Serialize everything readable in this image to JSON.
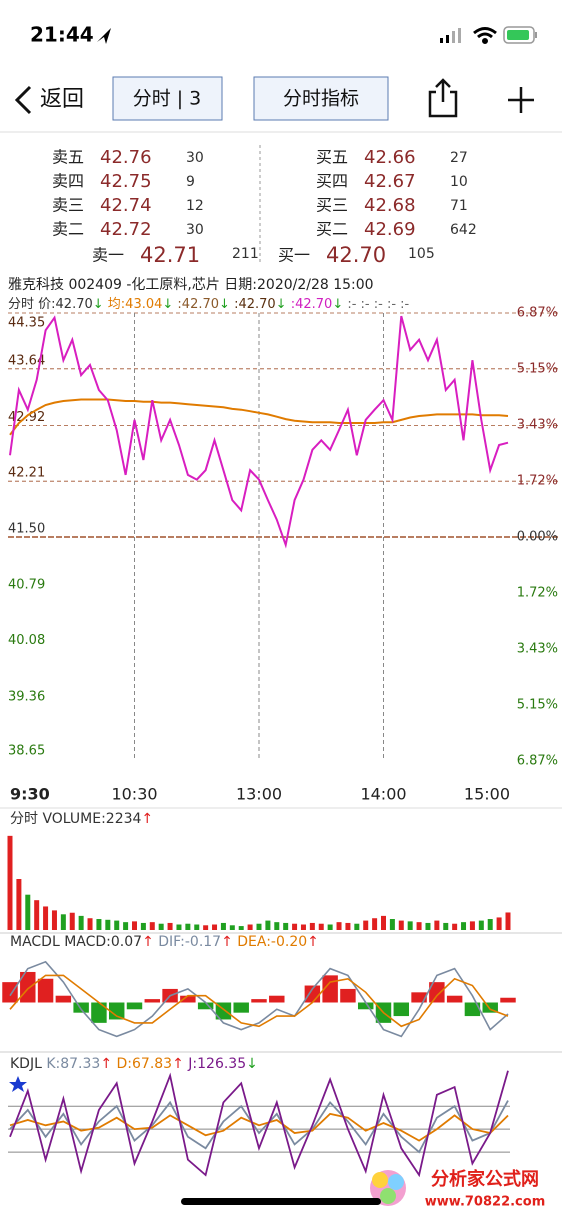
{
  "status_bar": {
    "time": "21:44"
  },
  "nav": {
    "back": "返回",
    "period_button": "分时 | 3",
    "indicator_button": "分时指标"
  },
  "order_book": {
    "asks": [
      {
        "label": "卖五",
        "price": "42.76",
        "volume": 30
      },
      {
        "label": "卖四",
        "price": "42.75",
        "volume": 9
      },
      {
        "label": "卖三",
        "price": "42.74",
        "volume": 12
      },
      {
        "label": "卖二",
        "price": "42.72",
        "volume": 30
      }
    ],
    "bids": [
      {
        "label": "买五",
        "price": "42.66",
        "volume": 27
      },
      {
        "label": "买四",
        "price": "42.67",
        "volume": 10
      },
      {
        "label": "买三",
        "price": "42.68",
        "volume": 71
      },
      {
        "label": "买二",
        "price": "42.69",
        "volume": 642
      }
    ],
    "best_ask": {
      "label": "卖一",
      "price": "42.71",
      "volume": 211
    },
    "best_bid": {
      "label": "买一",
      "price": "42.70",
      "volume": 105
    }
  },
  "chart_header": {
    "title": "雅克科技 002409 -化工原料,芯片 日期:2020/2/28 15:00",
    "legend": [
      {
        "text": "分时 ",
        "color": "#333333"
      },
      {
        "text": "价:42.70",
        "arrow": "↓",
        "color": "#333333"
      },
      {
        "text": " 均:43.04",
        "arrow": "↓",
        "color": "#e07b00"
      },
      {
        "text": " :42.70",
        "arrow": "↓",
        "color": "#8b5a2b"
      },
      {
        "text": " :42.70",
        "arrow": "↓",
        "color": "#5a3010"
      },
      {
        "text": " :42.70",
        "arrow": "↓",
        "color": "#d020c0"
      },
      {
        "text": " :-",
        "color": "#666666"
      },
      {
        "text": " :-",
        "color": "#666666"
      },
      {
        "text": " :-",
        "color": "#666666"
      },
      {
        "text": " :-",
        "color": "#666666"
      },
      {
        "text": " :-",
        "color": "#666666"
      }
    ]
  },
  "price_chart": {
    "type": "line",
    "xlim": [
      0,
      240
    ],
    "xticks": [
      {
        "value": 0,
        "label": "9:30"
      },
      {
        "value": 60,
        "label": "10:30"
      },
      {
        "value": 120,
        "label": "13:00"
      },
      {
        "value": 180,
        "label": "14:00"
      },
      {
        "value": 240,
        "label": "15:00"
      }
    ],
    "ylim": [
      38.65,
      44.35
    ],
    "yticks": [
      44.35,
      43.64,
      42.92,
      42.21,
      {
        "value": 41.5,
        "label": "41.50"
      },
      40.79,
      40.08,
      39.36,
      38.65
    ],
    "y2lim": [
      -6.87,
      6.87
    ],
    "y2ticks": [
      {
        "value": 6.87,
        "label": "6.87%"
      },
      {
        "value": 5.15,
        "label": "5.15%"
      },
      {
        "value": 3.43,
        "label": "3.43%"
      },
      {
        "value": 1.72,
        "label": "1.72%"
      },
      {
        "value": 0,
        "label": "0.00%"
      },
      {
        "value": -1.72,
        "label": "1.72%"
      },
      {
        "value": -3.43,
        "label": "3.43%"
      },
      {
        "value": -5.15,
        "label": "5.15%"
      },
      {
        "value": -6.87,
        "label": "6.87%"
      }
    ],
    "up_color": "#8b2a2a",
    "down_color": "#2a7a10",
    "series": [
      {
        "color": "#d81ec0",
        "values": [
          42.54,
          43.37,
          43.12,
          43.5,
          44.13,
          44.29,
          43.75,
          44.01,
          43.56,
          43.69,
          43.37,
          43.24,
          42.86,
          42.29,
          42.99,
          42.48,
          43.24,
          42.73,
          42.99,
          42.67,
          42.29,
          42.23,
          42.35,
          42.73,
          42.35,
          41.97,
          41.84,
          42.35,
          42.23,
          41.97,
          41.72,
          41.4,
          41.97,
          42.23,
          42.61,
          42.73,
          42.61,
          42.86,
          43.12,
          42.54,
          42.99,
          43.12,
          43.24,
          42.99,
          44.31,
          43.88,
          44.01,
          43.75,
          44.01,
          43.37,
          43.5,
          42.73,
          43.75,
          42.99,
          42.35,
          42.67,
          42.7
        ]
      },
      {
        "color": "#e07b00",
        "values": [
          42.8,
          42.95,
          43.05,
          43.12,
          43.18,
          43.21,
          43.23,
          43.24,
          43.25,
          43.25,
          43.25,
          43.25,
          43.24,
          43.23,
          43.23,
          43.22,
          43.22,
          43.21,
          43.21,
          43.2,
          43.19,
          43.18,
          43.17,
          43.16,
          43.15,
          43.13,
          43.12,
          43.1,
          43.08,
          43.06,
          43.03,
          43.0,
          42.98,
          42.97,
          42.96,
          42.96,
          42.96,
          42.95,
          42.95,
          42.95,
          42.95,
          42.95,
          42.96,
          42.96,
          42.99,
          43.02,
          43.04,
          43.05,
          43.06,
          43.06,
          43.06,
          43.06,
          43.06,
          43.05,
          43.05,
          43.05,
          43.04
        ]
      }
    ]
  },
  "volume_chart": {
    "type": "bar",
    "title": "分时 VOLUME:2234",
    "arrow": "↑",
    "ylim": [
      0,
      13000
    ],
    "up_color": "#e02020",
    "down_color": "#20a020",
    "values": [
      12000,
      6500,
      4500,
      3800,
      3000,
      2500,
      2000,
      2200,
      1800,
      1500,
      1400,
      1300,
      1200,
      1000,
      1100,
      900,
      1000,
      800,
      900,
      700,
      800,
      700,
      600,
      700,
      900,
      600,
      500,
      700,
      800,
      1200,
      1000,
      900,
      800,
      700,
      900,
      800,
      700,
      1000,
      900,
      800,
      1200,
      1500,
      1800,
      1400,
      1200,
      1100,
      1000,
      900,
      1200,
      900,
      800,
      1000,
      1100,
      1200,
      1400,
      1600,
      2234
    ]
  },
  "macd_chart": {
    "type": "bar",
    "legend": [
      {
        "text": "MACDL ",
        "color": "#333333"
      },
      {
        "text": "MACD:0.07",
        "arrow": "↑",
        "color": "#333333"
      },
      {
        "text": " DIF:-0.17",
        "arrow": "↑",
        "color": "#7a8aa0"
      },
      {
        "text": " DEA:-0.20",
        "arrow": "↑",
        "color": "#e07b00"
      }
    ],
    "ylim": [
      -0.7,
      0.7
    ],
    "up_color": "#e02020",
    "down_color": "#20a020",
    "values": [
      0.3,
      0.45,
      0.35,
      0.1,
      -0.15,
      -0.3,
      -0.25,
      -0.1,
      0.05,
      0.2,
      0.1,
      -0.1,
      -0.25,
      -0.15,
      0.05,
      0.1,
      0.0,
      0.25,
      0.4,
      0.2,
      -0.1,
      -0.3,
      -0.2,
      0.15,
      0.3,
      0.1,
      -0.2,
      -0.15,
      0.07
    ],
    "series": [
      {
        "color": "#7a8aa0",
        "values": [
          0.1,
          0.5,
          0.6,
          0.3,
          -0.1,
          -0.4,
          -0.5,
          -0.4,
          -0.2,
          0.1,
          0.2,
          0.0,
          -0.3,
          -0.4,
          -0.3,
          -0.1,
          -0.2,
          0.2,
          0.5,
          0.4,
          0.0,
          -0.4,
          -0.5,
          -0.1,
          0.4,
          0.5,
          0.1,
          -0.4,
          -0.17
        ]
      },
      {
        "color": "#e07b00",
        "values": [
          -0.1,
          0.2,
          0.4,
          0.4,
          0.2,
          0.0,
          -0.2,
          -0.3,
          -0.3,
          -0.1,
          0.1,
          0.1,
          -0.1,
          -0.3,
          -0.35,
          -0.2,
          -0.2,
          0.0,
          0.3,
          0.35,
          0.15,
          -0.15,
          -0.35,
          -0.25,
          0.1,
          0.35,
          0.25,
          -0.1,
          -0.2
        ]
      }
    ]
  },
  "kdj_chart": {
    "type": "line",
    "legend": [
      {
        "text": "KDJL ",
        "color": "#333333"
      },
      {
        "text": "K:87.33",
        "arrow": "↑",
        "color": "#7a8aa0"
      },
      {
        "text": " D:67.83",
        "arrow": "↑",
        "color": "#e07b00"
      },
      {
        "text": " J:126.35",
        "arrow": "↓",
        "color": "#7a1a8a"
      }
    ],
    "ylim": [
      -10,
      130
    ],
    "yticks": [
      20,
      50,
      80
    ],
    "series": [
      {
        "color": "#7a8aa0",
        "values": [
          50,
          75,
          40,
          70,
          30,
          60,
          80,
          35,
          55,
          85,
          40,
          25,
          60,
          80,
          45,
          70,
          30,
          50,
          85,
          60,
          30,
          70,
          40,
          20,
          65,
          80,
          35,
          45,
          87.33
        ]
      },
      {
        "color": "#e07b00",
        "values": [
          55,
          62,
          55,
          60,
          48,
          52,
          65,
          50,
          52,
          68,
          55,
          42,
          48,
          65,
          55,
          62,
          45,
          48,
          70,
          65,
          48,
          58,
          48,
          35,
          50,
          68,
          50,
          45,
          67.83
        ]
      },
      {
        "color": "#7a1a8a",
        "values": [
          40,
          100,
          10,
          90,
          -5,
          75,
          110,
          5,
          60,
          120,
          10,
          -10,
          85,
          110,
          25,
          85,
          0,
          55,
          115,
          50,
          -5,
          95,
          25,
          -10,
          95,
          105,
          5,
          45,
          126.35
        ]
      }
    ]
  },
  "watermark": {
    "name": "分析家公式网",
    "url": "www.70822.com"
  }
}
